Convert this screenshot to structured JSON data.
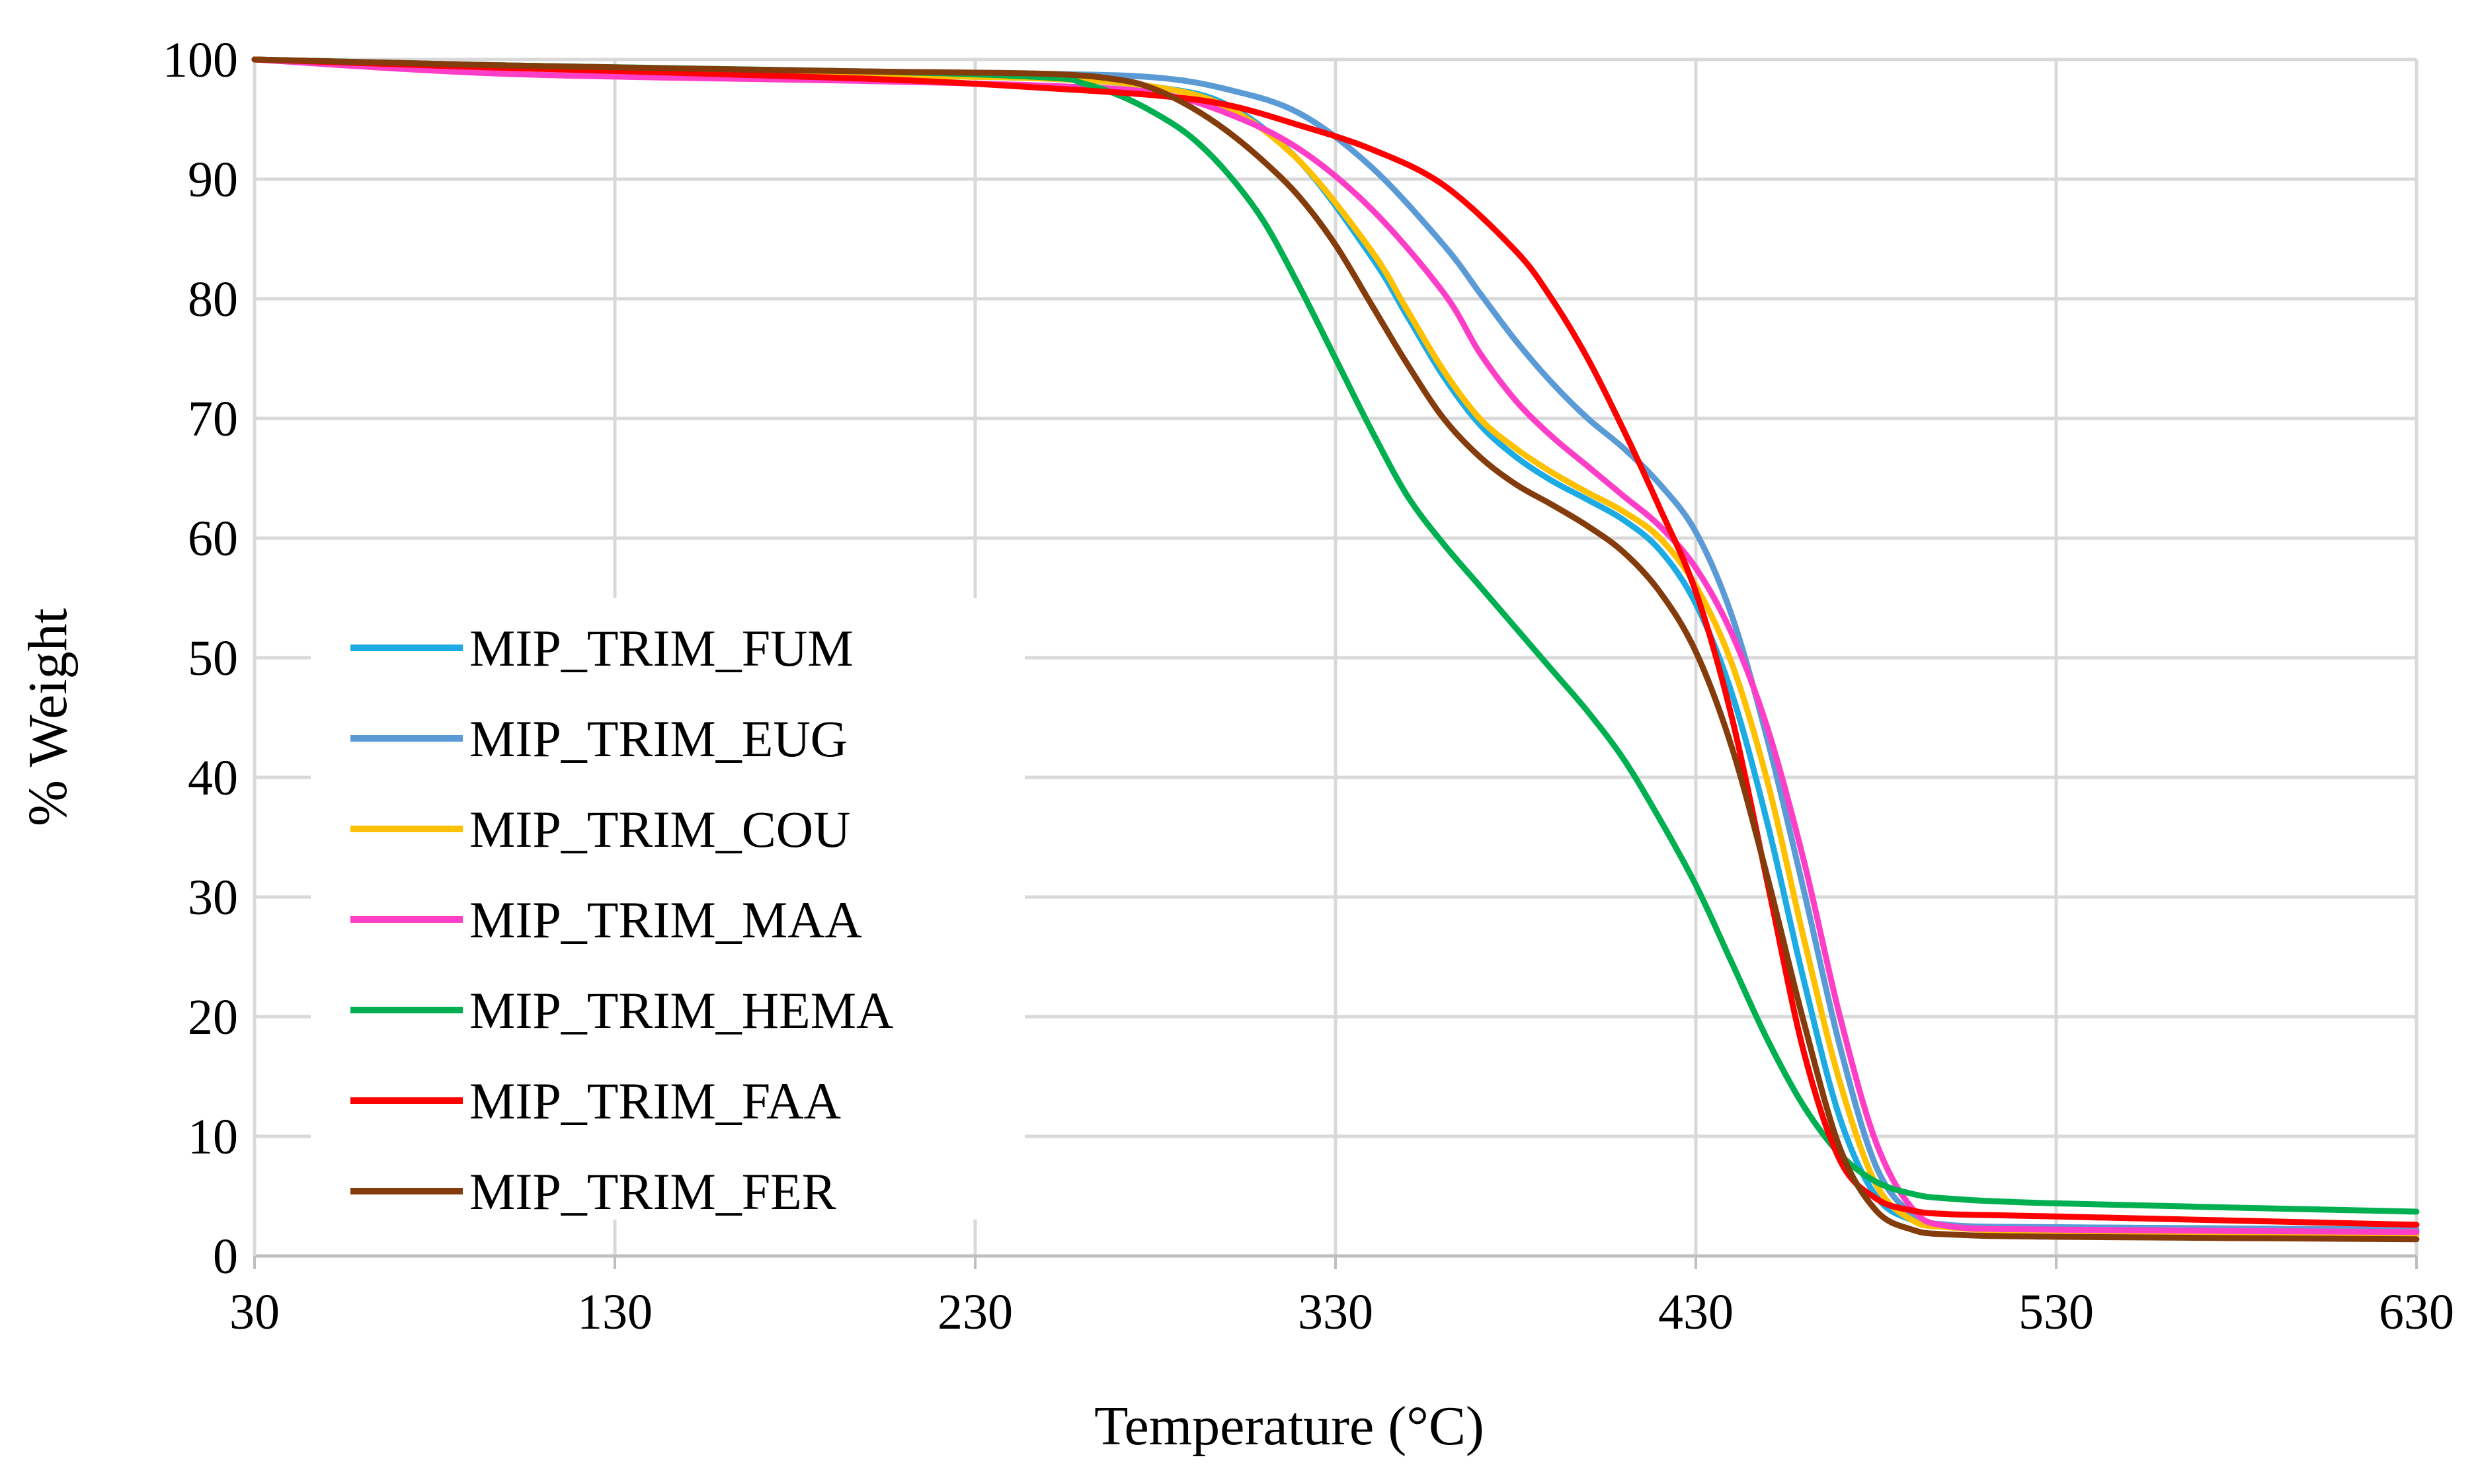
{
  "chart_data": {
    "type": "line",
    "title": "",
    "xlabel": "Temperature (°C)",
    "ylabel": "% Weight",
    "xlim": [
      30,
      630
    ],
    "ylim": [
      0,
      100
    ],
    "x_ticks": [
      30,
      130,
      230,
      330,
      430,
      530,
      630
    ],
    "y_ticks": [
      0,
      10,
      20,
      30,
      40,
      50,
      60,
      70,
      80,
      90,
      100
    ],
    "grid": true,
    "legend_position": "left",
    "series": [
      {
        "name": "MIP_TRIM_FUM",
        "color": "#1cabe2",
        "x": [
          30,
          100,
          200,
          250,
          280,
          300,
          320,
          340,
          350,
          360,
          370,
          380,
          390,
          400,
          410,
          420,
          430,
          440,
          450,
          460,
          470,
          480,
          490,
          500,
          530,
          630
        ],
        "y": [
          100,
          99.3,
          98.7,
          98.4,
          97.7,
          96.2,
          91.5,
          83.5,
          78.5,
          73.5,
          69.5,
          66.8,
          64.8,
          63.2,
          61.5,
          59.0,
          54.5,
          47.0,
          36.0,
          23.0,
          11.5,
          5.0,
          3.0,
          2.5,
          2.4,
          2.2
        ]
      },
      {
        "name": "MIP_TRIM_EUG",
        "color": "#5b9bd5",
        "x": [
          30,
          100,
          200,
          250,
          280,
          300,
          320,
          340,
          360,
          370,
          380,
          390,
          400,
          410,
          420,
          430,
          440,
          450,
          460,
          470,
          480,
          490,
          500,
          530,
          630
        ],
        "y": [
          100,
          99.5,
          99.0,
          98.8,
          98.5,
          97.5,
          95.5,
          91.0,
          84.5,
          80.5,
          76.5,
          73.0,
          70.0,
          67.5,
          64.5,
          60.5,
          53.5,
          43.0,
          30.5,
          17.5,
          7.5,
          3.5,
          2.6,
          2.4,
          2.2
        ]
      },
      {
        "name": "MIP_TRIM_COU",
        "color": "#ffc000",
        "x": [
          30,
          100,
          200,
          250,
          280,
          300,
          320,
          340,
          350,
          360,
          370,
          380,
          390,
          400,
          410,
          420,
          430,
          440,
          450,
          460,
          470,
          480,
          490,
          500,
          530,
          630
        ],
        "y": [
          100,
          99.3,
          98.7,
          98.4,
          97.7,
          96.0,
          91.5,
          84.0,
          79.0,
          74.0,
          70.0,
          67.5,
          65.5,
          63.8,
          62.2,
          60.0,
          56.0,
          49.5,
          39.5,
          26.5,
          14.5,
          6.0,
          3.0,
          2.4,
          2.0,
          1.8
        ]
      },
      {
        "name": "MIP_TRIM_MAA",
        "color": "#ff3ec8",
        "x": [
          30,
          100,
          200,
          250,
          280,
          300,
          320,
          340,
          360,
          370,
          380,
          390,
          400,
          410,
          420,
          430,
          440,
          450,
          460,
          470,
          480,
          490,
          500,
          530,
          630
        ],
        "y": [
          100,
          98.8,
          98.2,
          97.8,
          97.2,
          95.5,
          92.5,
          87.5,
          80.5,
          75.5,
          71.5,
          68.5,
          66.0,
          63.5,
          61.0,
          57.5,
          52.0,
          44.0,
          33.0,
          20.0,
          9.5,
          4.0,
          2.5,
          2.2,
          2.0
        ]
      },
      {
        "name": "MIP_TRIM_HEMA",
        "color": "#00b050",
        "x": [
          30,
          100,
          200,
          250,
          260,
          270,
          280,
          290,
          300,
          310,
          320,
          330,
          340,
          350,
          360,
          370,
          380,
          390,
          400,
          410,
          420,
          430,
          440,
          450,
          460,
          470,
          480,
          490,
          500,
          530,
          630
        ],
        "y": [
          100,
          99.5,
          99.0,
          98.5,
          98.0,
          97.0,
          95.5,
          93.5,
          90.5,
          86.5,
          81.0,
          75.0,
          69.0,
          63.5,
          59.5,
          56.0,
          52.5,
          49.0,
          45.5,
          41.5,
          36.5,
          31.0,
          24.5,
          18.0,
          12.5,
          8.5,
          6.2,
          5.2,
          4.8,
          4.4,
          3.7
        ]
      },
      {
        "name": "MIP_TRIM_FAA",
        "color": "#ff0000",
        "x": [
          30,
          100,
          200,
          250,
          280,
          300,
          320,
          340,
          360,
          380,
          390,
          400,
          410,
          420,
          430,
          440,
          450,
          460,
          470,
          480,
          490,
          500,
          530,
          630
        ],
        "y": [
          100,
          99.3,
          98.4,
          97.6,
          97.0,
          96.2,
          94.5,
          92.5,
          89.5,
          84.0,
          80.0,
          75.0,
          69.0,
          62.5,
          55.5,
          45.0,
          31.0,
          17.0,
          8.0,
          4.8,
          3.8,
          3.5,
          3.3,
          2.6
        ]
      },
      {
        "name": "MIP_TRIM_FER",
        "color": "#843c0c",
        "x": [
          30,
          100,
          200,
          250,
          270,
          280,
          290,
          300,
          310,
          320,
          330,
          340,
          350,
          360,
          370,
          380,
          390,
          400,
          410,
          420,
          430,
          440,
          450,
          460,
          470,
          480,
          490,
          500,
          530,
          630
        ],
        "y": [
          100,
          99.5,
          99.0,
          98.8,
          98.3,
          97.5,
          96.0,
          94.0,
          91.5,
          88.5,
          84.5,
          79.5,
          74.5,
          70.0,
          66.8,
          64.5,
          62.8,
          61.0,
          58.8,
          55.5,
          50.5,
          42.5,
          31.5,
          19.5,
          9.0,
          3.8,
          2.2,
          1.8,
          1.6,
          1.4
        ]
      }
    ]
  }
}
